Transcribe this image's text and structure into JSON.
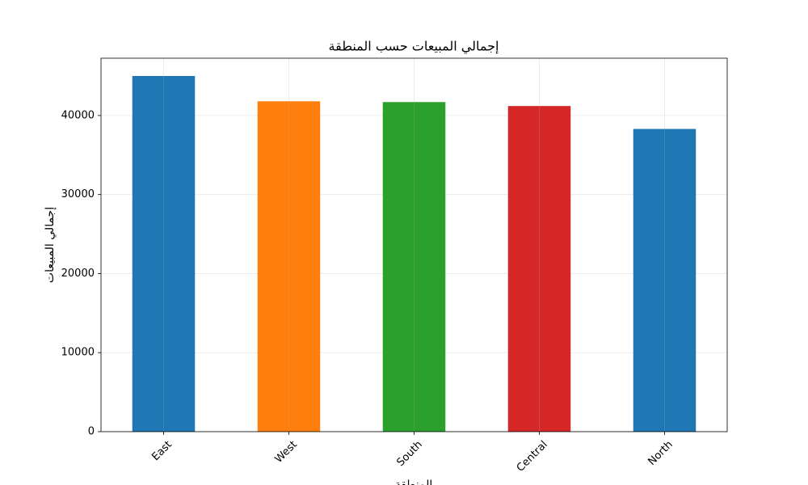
{
  "chart_data": {
    "type": "bar",
    "title": "إجمالي المبيعات حسب المنطقة",
    "x_label": "المنطقة",
    "y_label": "إجمالي المبيعات",
    "categories": [
      "East",
      "West",
      "South",
      "Central",
      "North"
    ],
    "values": [
      45000,
      41800,
      41700,
      41200,
      38300
    ],
    "colors": [
      "#1f77b4",
      "#ff7f0e",
      "#2ca02c",
      "#d62728",
      "#1f77b4"
    ],
    "ylim": [
      0,
      47250
    ],
    "yticks": [
      0,
      10000,
      20000,
      30000,
      40000
    ],
    "grid": true
  }
}
